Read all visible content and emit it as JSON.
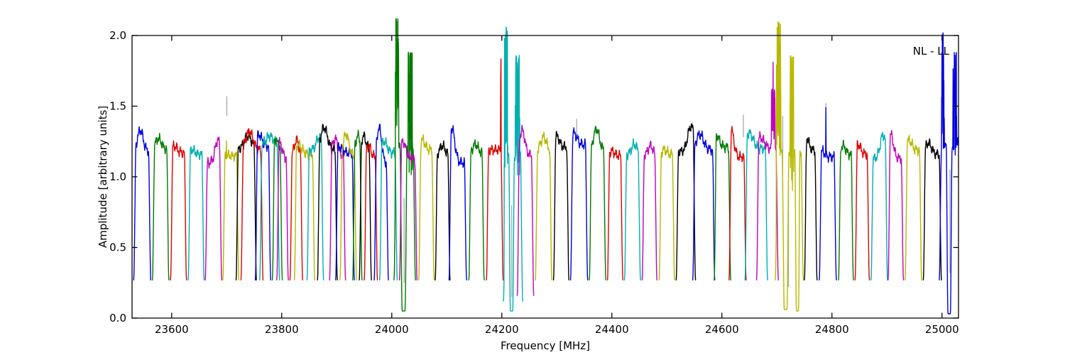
{
  "chart_data": {
    "type": "line",
    "title": "",
    "xlabel": "Frequency [MHz]",
    "ylabel": "Amplitude [arbitrary units]",
    "annotation": "NL - LL",
    "xlim": [
      23528,
      25030
    ],
    "ylim": [
      0.0,
      2.0
    ],
    "xticks": [
      23600,
      23800,
      24000,
      24200,
      24400,
      24600,
      24800,
      25000
    ],
    "yticks": [
      0.0,
      0.5,
      1.0,
      1.5,
      2.0
    ],
    "ytick_labels": [
      "0.0",
      "0.5",
      "1.0",
      "1.5",
      "2.0"
    ],
    "grid": false,
    "legend_position": "none",
    "colors": {
      "b": "#0000e0",
      "g": "#007a00",
      "r": "#e00000",
      "c": "#00b0b0",
      "m": "#c000c0",
      "y": "#b8b800",
      "k": "#000000"
    },
    "artifact_color": "#a8a8a8",
    "baseline_level": 0.27,
    "bands": [
      {
        "c": "b",
        "f0": 23531,
        "f1": 23562,
        "top": 1.18,
        "pk": [
          23543,
          1.33
        ]
      },
      {
        "c": "g",
        "f0": 23565,
        "f1": 23595,
        "top": 1.2,
        "pk": [
          23576,
          1.27
        ]
      },
      {
        "c": "r",
        "f0": 23598,
        "f1": 23627,
        "top": 1.17,
        "pk": [
          23605,
          1.22
        ]
      },
      {
        "c": "c",
        "f0": 23630,
        "f1": 23659,
        "top": 1.16,
        "pk": [
          23637,
          1.19
        ]
      },
      {
        "c": "m",
        "f0": 23661,
        "f1": 23691,
        "top": 1.1,
        "pk": [
          23684,
          1.26
        ]
      },
      {
        "c": "y",
        "f0": 23693,
        "f1": 23722,
        "top": 1.15,
        "ft": [
          [
            "spike",
            23699.3,
            1.5,
            1.0
          ]
        ]
      },
      {
        "c": "k",
        "f0": 23717,
        "f1": 23754,
        "top": 1.2,
        "pk": [
          23739,
          1.29
        ]
      },
      {
        "c": "r",
        "f0": 23726,
        "f1": 23766,
        "top": 1.19,
        "pk": [
          23741,
          1.32
        ]
      },
      {
        "c": "b",
        "f0": 23752,
        "f1": 23780,
        "top": 1.22,
        "pk": [
          23759,
          1.3
        ]
      },
      {
        "c": "c",
        "f0": 23760,
        "f1": 23796,
        "top": 1.23,
        "pk": [
          23778,
          1.29
        ]
      },
      {
        "c": "g",
        "f0": 23783,
        "f1": 23801,
        "top": 1.22,
        "pk": [
          23788,
          1.27
        ]
      },
      {
        "c": "m",
        "f0": 23791,
        "f1": 23812,
        "top": 1.14,
        "pk": [
          23797,
          1.24
        ]
      },
      {
        "c": "r",
        "f0": 23815,
        "f1": 23838,
        "top": 1.16,
        "pk": [
          23827,
          1.26
        ]
      },
      {
        "c": "y",
        "f0": 23823,
        "f1": 23860,
        "top": 1.16,
        "pk": [
          23830,
          1.23
        ]
      },
      {
        "c": "c",
        "f0": 23846,
        "f1": 23876,
        "top": 1.19,
        "pk": [
          23868,
          1.28
        ]
      },
      {
        "c": "k",
        "f0": 23865,
        "f1": 23901,
        "top": 1.19,
        "pk": [
          23877,
          1.35
        ]
      },
      {
        "c": "m",
        "f0": 23887,
        "f1": 23916,
        "top": 1.15,
        "pk": [
          23897,
          1.27
        ]
      },
      {
        "c": "b",
        "f0": 23898,
        "f1": 23932,
        "top": 1.17,
        "pk": [
          23905,
          1.21
        ]
      },
      {
        "c": "y",
        "f0": 23906,
        "f1": 23936,
        "top": 1.15,
        "pk": [
          23917,
          1.3
        ]
      },
      {
        "c": "g",
        "f0": 23929,
        "f1": 23946,
        "top": 1.23,
        "pk": [
          23939,
          1.29
        ]
      },
      {
        "c": "k",
        "f0": 23941,
        "f1": 23963,
        "top": 1.2,
        "pk": [
          23949,
          1.29
        ]
      },
      {
        "c": "r",
        "f0": 23950,
        "f1": 23974,
        "top": 1.14,
        "pk": [
          23958,
          1.22
        ]
      },
      {
        "c": "b",
        "f0": 23968,
        "f1": 23994,
        "top": 1.1,
        "pk": [
          23977,
          1.35
        ]
      },
      {
        "c": "c",
        "f0": 23978,
        "f1": 24010,
        "top": 1.17,
        "pk": [
          23986,
          1.25
        ]
      },
      {
        "c": "g",
        "f0": 24004,
        "f1": 24043,
        "top": 1.2,
        "ft": [
          [
            "jag",
            24006,
            24013,
            1.35,
            2.12
          ],
          [
            "dip",
            24015,
            24028,
            0.05
          ],
          [
            "jag",
            24029,
            24038,
            1.0,
            1.88
          ]
        ]
      },
      {
        "c": "m",
        "f0": 24014,
        "f1": 24046,
        "top": 1.13,
        "pk": [
          24020,
          1.25
        ]
      },
      {
        "c": "y",
        "f0": 24049,
        "f1": 24077,
        "top": 1.19,
        "pk": [
          24056,
          1.26
        ]
      },
      {
        "c": "k",
        "f0": 24079,
        "f1": 24106,
        "top": 1.16,
        "pk": [
          24092,
          1.22
        ]
      },
      {
        "c": "b",
        "f0": 24104,
        "f1": 24136,
        "top": 1.1,
        "pk": [
          24109,
          1.35
        ]
      },
      {
        "c": "g",
        "f0": 24140,
        "f1": 24168,
        "top": 1.17,
        "pk": [
          24152,
          1.23
        ]
      },
      {
        "c": "r",
        "f0": 24172,
        "f1": 24202.5,
        "top": 1.19,
        "ft": [
          [
            "spike",
            24198.3,
            2.12,
            1.3
          ]
        ]
      },
      {
        "c": "c",
        "f0": 24203,
        "f1": 24238,
        "top": 1.15,
        "lo": 0.12,
        "ft": [
          [
            "jag",
            24204,
            24211,
            1.05,
            2.06
          ],
          [
            "dip",
            24212.5,
            24223,
            0.05
          ],
          [
            "jag",
            24224,
            24233,
            1.0,
            1.86
          ]
        ]
      },
      {
        "c": "m",
        "f0": 24228,
        "f1": 24258,
        "top": 1.15,
        "lo": 0.16,
        "pk": [
          24237,
          1.33
        ]
      },
      {
        "c": "y",
        "f0": 24261,
        "f1": 24291,
        "top": 1.19,
        "pk": [
          24276,
          1.28
        ]
      },
      {
        "c": "k",
        "f0": 24294,
        "f1": 24322,
        "top": 1.21,
        "pk": [
          24300,
          1.29
        ]
      },
      {
        "c": "b",
        "f0": 24325,
        "f1": 24356,
        "top": 1.23,
        "pk": [
          24331,
          1.31
        ]
      },
      {
        "c": "g",
        "f0": 24359,
        "f1": 24389,
        "top": 1.19,
        "pk": [
          24372,
          1.34
        ]
      },
      {
        "c": "r",
        "f0": 24392,
        "f1": 24420,
        "top": 1.15,
        "pk": [
          24400,
          1.18
        ]
      },
      {
        "c": "c",
        "f0": 24423,
        "f1": 24452,
        "top": 1.16,
        "pk": [
          24441,
          1.23
        ]
      },
      {
        "c": "m",
        "f0": 24455,
        "f1": 24482,
        "top": 1.15,
        "pk": [
          24470,
          1.22
        ]
      },
      {
        "c": "y",
        "f0": 24486,
        "f1": 24514,
        "top": 1.16,
        "pk": [
          24495,
          1.19
        ]
      },
      {
        "c": "k",
        "f0": 24517,
        "f1": 24552,
        "top": 1.18,
        "pk": [
          24544,
          1.36
        ]
      },
      {
        "c": "b",
        "f0": 24547,
        "f1": 24587,
        "top": 1.19,
        "pk": [
          24560,
          1.3
        ]
      },
      {
        "c": "g",
        "f0": 24586,
        "f1": 24616,
        "top": 1.21,
        "pk": [
          24590,
          1.3
        ]
      },
      {
        "c": "r",
        "f0": 24613,
        "f1": 24644,
        "top": 1.14,
        "pk": [
          24616,
          1.35
        ]
      },
      {
        "c": "c",
        "f0": 24642,
        "f1": 24683,
        "top": 1.2,
        "pk": [
          24650,
          1.31
        ]
      },
      {
        "c": "m",
        "f0": 24663,
        "f1": 24702.5,
        "top": 1.2,
        "pk": [
          24670,
          1.28
        ],
        "ft": [
          [
            "jag",
            24689.5,
            24697,
            1.25,
            1.62
          ],
          [
            "spike",
            24693,
            1.85,
            0.8
          ]
        ]
      },
      {
        "c": "y",
        "f0": 24697,
        "f1": 24748,
        "top": 1.18,
        "ft": [
          [
            "jag",
            24698.5,
            24707.5,
            1.15,
            2.1
          ],
          [
            "dip",
            24709.5,
            24722,
            0.06
          ],
          [
            "jag",
            24723.5,
            24731,
            0.9,
            1.86
          ],
          [
            "dip",
            24732.5,
            24742,
            0.05
          ]
        ]
      },
      {
        "c": "k",
        "f0": 24750,
        "f1": 24773,
        "top": 1.19,
        "pk": [
          24754,
          1.28
        ]
      },
      {
        "c": "b",
        "f0": 24777,
        "f1": 24808,
        "top": 1.14,
        "pk": [
          24782,
          1.18
        ],
        "ft": [
          [
            "spike",
            24789,
            1.49,
            1.0
          ]
        ]
      },
      {
        "c": "g",
        "f0": 24812,
        "f1": 24839,
        "top": 1.16,
        "pk": [
          24820,
          1.22
        ]
      },
      {
        "c": "r",
        "f0": 24842,
        "f1": 24868,
        "top": 1.16,
        "pk": [
          24848,
          1.23
        ]
      },
      {
        "c": "c",
        "f0": 24871,
        "f1": 24901,
        "top": 1.13,
        "pk": [
          24893,
          1.3
        ]
      },
      {
        "c": "m",
        "f0": 24902,
        "f1": 24930,
        "top": 1.13,
        "pk": [
          24907,
          1.3
        ]
      },
      {
        "c": "y",
        "f0": 24933,
        "f1": 24963,
        "top": 1.19,
        "pk": [
          24940,
          1.26
        ]
      },
      {
        "c": "k",
        "f0": 24966,
        "f1": 24999,
        "top": 1.16,
        "pk": [
          24975,
          1.24
        ]
      },
      {
        "c": "b",
        "f0": 24995,
        "f1": 25030.5,
        "top": 1.24,
        "cut": true,
        "ft": [
          [
            "jag",
            24999,
            25004.5,
            1.2,
            2.02
          ],
          [
            "dip",
            25007.5,
            25018.5,
            0.03
          ],
          [
            "jag",
            25019.5,
            25027,
            1.15,
            1.88
          ]
        ]
      }
    ],
    "artifacts": [
      {
        "f": 23700.2,
        "a0": 1.43,
        "a1": 1.57
      },
      {
        "f": 24022.5,
        "a0": 0.25,
        "a1": 0.85
      },
      {
        "f": 24206.5,
        "a0": 1.5,
        "a1": 1.9
      },
      {
        "f": 24218.0,
        "a0": 0.15,
        "a1": 0.8
      },
      {
        "f": 24336.0,
        "a0": 1.3,
        "a1": 1.41
      },
      {
        "f": 24639.0,
        "a0": 1.28,
        "a1": 1.44
      },
      {
        "f": 24696.0,
        "a0": 1.32,
        "a1": 1.62
      },
      {
        "f": 24710.5,
        "a0": 0.9,
        "a1": 1.43
      },
      {
        "f": 24721.0,
        "a0": 0.22,
        "a1": 0.95
      },
      {
        "f": 24789.0,
        "a0": 1.38,
        "a1": 1.52
      },
      {
        "f": 25014.5,
        "a0": 0.32,
        "a1": 1.05
      },
      {
        "f": 25024.5,
        "a0": 1.3,
        "a1": 1.58
      }
    ]
  }
}
